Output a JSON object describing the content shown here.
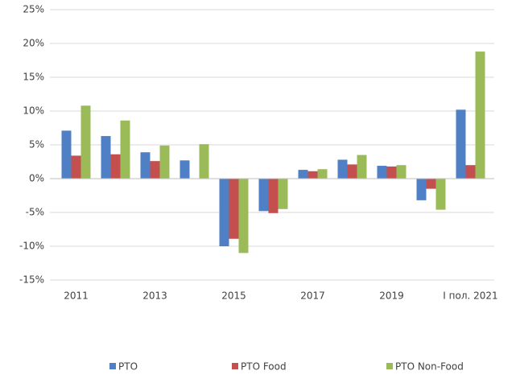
{
  "chart_data": {
    "type": "bar",
    "categories": [
      "2011",
      null,
      "2013",
      null,
      "2015",
      null,
      "2017",
      null,
      "2019",
      null,
      "I пол. 2021"
    ],
    "series": [
      {
        "name": "PTO",
        "color": "#4f7fc4",
        "values": [
          7.1,
          6.3,
          3.9,
          2.7,
          -10.0,
          -4.8,
          1.3,
          2.8,
          1.9,
          -3.2,
          10.2
        ]
      },
      {
        "name": "PTO Food",
        "color": "#c3504f",
        "values": [
          3.4,
          3.6,
          2.6,
          0,
          -8.9,
          -5.1,
          1.1,
          2.1,
          1.8,
          -1.5,
          2.0
        ]
      },
      {
        "name": "PTO Non-Food",
        "color": "#9bbb59",
        "values": [
          10.8,
          8.6,
          4.9,
          5.1,
          -11.0,
          -4.5,
          1.4,
          3.5,
          2.0,
          -4.6,
          18.8
        ]
      }
    ],
    "ylim": [
      -15,
      25
    ],
    "yticks": [
      {
        "value": -15,
        "label": "-15%"
      },
      {
        "value": -10,
        "label": "-10%"
      },
      {
        "value": -5,
        "label": "-5%"
      },
      {
        "value": 0,
        "label": "0%"
      },
      {
        "value": 5,
        "label": "5%"
      },
      {
        "value": 10,
        "label": "10%"
      },
      {
        "value": 15,
        "label": "15%"
      },
      {
        "value": 20,
        "label": "20%"
      },
      {
        "value": 25,
        "label": "25%"
      }
    ],
    "grid": true,
    "legend": "bottom"
  }
}
